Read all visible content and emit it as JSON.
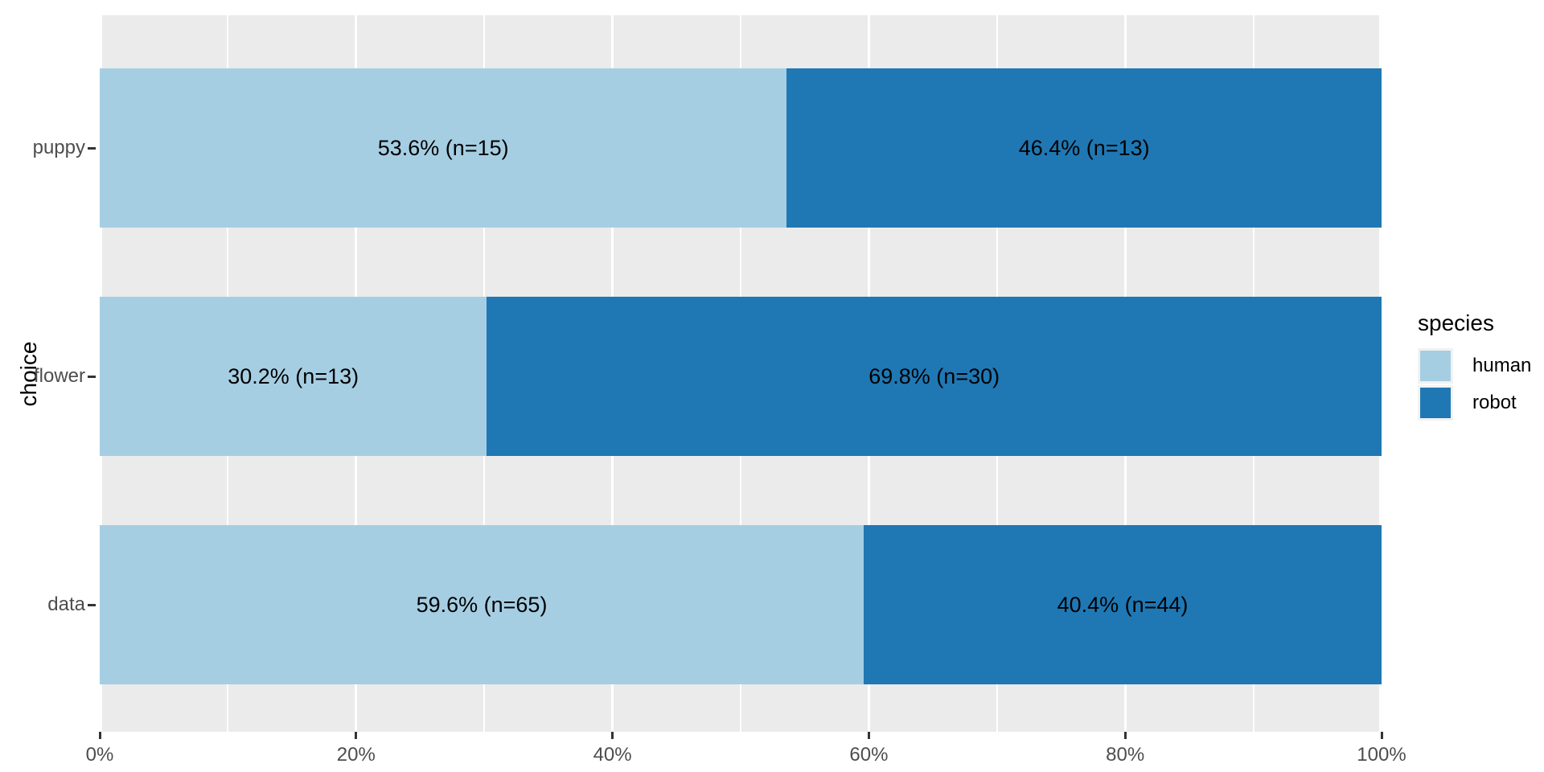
{
  "figure": {
    "y_axis_title": "choice",
    "legend": {
      "title": "species",
      "entries": [
        {
          "label": "human",
          "color": "#A6CEE3"
        },
        {
          "label": "robot",
          "color": "#1F78B4"
        }
      ]
    }
  },
  "chart_data": {
    "type": "bar",
    "orientation": "horizontal",
    "stacked": true,
    "stack_total": "100%",
    "title": "",
    "xlabel": "",
    "ylabel": "choice",
    "xlim": [
      0,
      100
    ],
    "grid": "on",
    "legend_position": "right",
    "legend_title": "species",
    "categories": [
      "puppy",
      "flower",
      "data"
    ],
    "series": [
      {
        "name": "human",
        "color": "#A6CEE3",
        "values": [
          53.6,
          30.2,
          59.6
        ],
        "counts": [
          15,
          13,
          65
        ]
      },
      {
        "name": "robot",
        "color": "#1F78B4",
        "values": [
          46.4,
          69.8,
          40.4
        ],
        "counts": [
          13,
          30,
          44
        ]
      }
    ],
    "bar_labels": [
      [
        "53.6% (n=15)",
        "46.4% (n=13)"
      ],
      [
        "30.2% (n=13)",
        "69.8% (n=30)"
      ],
      [
        "59.6% (n=65)",
        "40.4% (n=44)"
      ]
    ],
    "x_tick_labels": [
      "0%",
      "20%",
      "40%",
      "60%",
      "80%",
      "100%"
    ],
    "x_tick_values": [
      0,
      20,
      40,
      60,
      80,
      100
    ],
    "x_minor_tick_values": [
      10,
      30,
      50,
      70,
      90
    ],
    "colors": {
      "panel_background": "#EBEBEB",
      "gridline": "#FFFFFF",
      "axis_text": "#4D4D4D",
      "tick_mark": "#333333",
      "bar_label_text": "#000000"
    }
  }
}
